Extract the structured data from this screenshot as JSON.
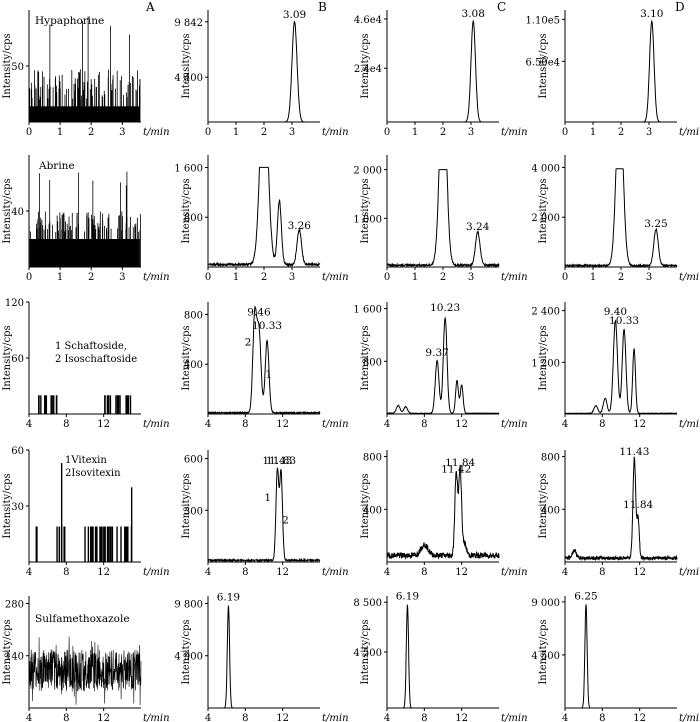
{
  "column_letters": [
    "A",
    "B",
    "C",
    "D"
  ],
  "chart_data": [
    {
      "id": "r0c0",
      "row": 0,
      "col": 0,
      "type": "line",
      "ylabel": "Intensity/cps",
      "xlabel": "t/min",
      "xlim": [
        0,
        3.6
      ],
      "ylim": [
        0,
        100
      ],
      "xticks": [
        0,
        1,
        2,
        3
      ],
      "yticks": [
        50
      ],
      "ytick_labels": [
        "50"
      ],
      "title": "Hypaphorine",
      "noise": {
        "kind": "spiky",
        "base": 14,
        "spike": [
          20,
          48
        ],
        "peaks": [
          75,
          95
        ]
      },
      "annotations": []
    },
    {
      "id": "r0c1",
      "row": 0,
      "col": 1,
      "type": "line",
      "ylabel": "Intensity/cps",
      "xlabel": "t/min",
      "xlim": [
        0,
        4
      ],
      "ylim": [
        0,
        11000
      ],
      "xticks": [
        0,
        1,
        2,
        3
      ],
      "yticks": [
        4400,
        9842
      ],
      "ytick_labels": [
        "4 400",
        "9 842"
      ],
      "peaks": [
        {
          "x": 3.09,
          "h": 9842,
          "w": 0.09
        }
      ],
      "annotations": [
        {
          "text": "3.09",
          "x": 3.09,
          "y": 9842
        }
      ]
    },
    {
      "id": "r0c2",
      "row": 0,
      "col": 2,
      "type": "line",
      "ylabel": "Intensity/cps",
      "xlabel": "t/min",
      "xlim": [
        0,
        4
      ],
      "ylim": [
        0,
        50000
      ],
      "xticks": [
        0,
        1,
        2,
        3
      ],
      "yticks": [
        24000,
        46000
      ],
      "ytick_labels": [
        "2.4e4",
        "4.6e4"
      ],
      "peaks": [
        {
          "x": 3.08,
          "h": 45000,
          "w": 0.08
        }
      ],
      "annotations": [
        {
          "text": "3.08",
          "x": 3.08,
          "y": 45000
        }
      ]
    },
    {
      "id": "r0c3",
      "row": 0,
      "col": 3,
      "type": "line",
      "ylabel": "Intensity/cps",
      "xlabel": "t/min",
      "xlim": [
        0,
        4
      ],
      "ylim": [
        0,
        120000
      ],
      "xticks": [
        0,
        1,
        2,
        3
      ],
      "yticks": [
        65000,
        110000
      ],
      "ytick_labels": [
        "6.50e4",
        "1.10e5"
      ],
      "peaks": [
        {
          "x": 3.1,
          "h": 108000,
          "w": 0.08
        }
      ],
      "annotations": [
        {
          "text": "3.10",
          "x": 3.1,
          "y": 108000
        }
      ]
    },
    {
      "id": "r1c0",
      "row": 1,
      "col": 0,
      "type": "line",
      "ylabel": "Intensity/cps",
      "xlabel": "t/min",
      "xlim": [
        0,
        3.6
      ],
      "ylim": [
        0,
        80
      ],
      "xticks": [
        0,
        1,
        2,
        3
      ],
      "yticks": [
        40
      ],
      "ytick_labels": [
        "40"
      ],
      "title": "Abrine",
      "noise": {
        "kind": "spiky",
        "base": 20,
        "spike": [
          25,
          40
        ],
        "peaks": [
          58,
          70
        ]
      },
      "annotations": []
    },
    {
      "id": "r1c1",
      "row": 1,
      "col": 1,
      "type": "line",
      "ylabel": "Intensity/cps",
      "xlabel": "t/min",
      "xlim": [
        0,
        4
      ],
      "ylim": [
        0,
        1800
      ],
      "xticks": [
        0,
        1,
        2,
        3
      ],
      "yticks": [
        800,
        1600
      ],
      "ytick_labels": [
        "800",
        "1 600"
      ],
      "clip": 1600,
      "baseline": 40,
      "peaks": [
        {
          "x": 2.0,
          "h": 3000,
          "w": 0.14
        },
        {
          "x": 2.55,
          "h": 1020,
          "w": 0.07
        },
        {
          "x": 3.26,
          "h": 550,
          "w": 0.08
        }
      ],
      "annotations": [
        {
          "text": "3.26",
          "x": 3.26,
          "y": 550
        }
      ]
    },
    {
      "id": "r1c2",
      "row": 1,
      "col": 2,
      "type": "line",
      "ylabel": "Intensity/cps",
      "xlabel": "t/min",
      "xlim": [
        0,
        4
      ],
      "ylim": [
        0,
        2300
      ],
      "xticks": [
        0,
        1,
        2,
        3
      ],
      "yticks": [
        1000,
        2000
      ],
      "ytick_labels": [
        "1 000",
        "2 000"
      ],
      "clip": 2000,
      "baseline": 40,
      "peaks": [
        {
          "x": 2.0,
          "h": 4000,
          "w": 0.12
        },
        {
          "x": 3.24,
          "h": 680,
          "w": 0.08
        }
      ],
      "annotations": [
        {
          "text": "3.24",
          "x": 3.24,
          "y": 680
        }
      ]
    },
    {
      "id": "r1c3",
      "row": 1,
      "col": 3,
      "type": "line",
      "ylabel": "Intensity/cps",
      "xlabel": "t/min",
      "xlim": [
        0,
        4
      ],
      "ylim": [
        0,
        4500
      ],
      "xticks": [
        0,
        1,
        2,
        3
      ],
      "yticks": [
        2000,
        4000
      ],
      "ytick_labels": [
        "2 000",
        "4 000"
      ],
      "clip": 3950,
      "baseline": 60,
      "peaks": [
        {
          "x": 1.95,
          "h": 7000,
          "w": 0.12
        },
        {
          "x": 3.25,
          "h": 1450,
          "w": 0.08
        }
      ],
      "annotations": [
        {
          "text": "3.25",
          "x": 3.25,
          "y": 1450
        }
      ]
    },
    {
      "id": "r2c0",
      "row": 2,
      "col": 0,
      "type": "line",
      "ylabel": "Intensity/cps",
      "xlabel": "t/min",
      "xlim": [
        4,
        16
      ],
      "ylim": [
        0,
        120
      ],
      "xticks": [
        4,
        8,
        12
      ],
      "yticks": [
        60,
        120
      ],
      "ytick_labels": [
        "60",
        "120"
      ],
      "title_lines": [
        "1 Schaftoside,",
        "2 Isoschaftoside"
      ],
      "noise": {
        "kind": "sparse",
        "ranges": [
          [
            5,
            7
          ],
          [
            12,
            15
          ]
        ],
        "h": 20
      },
      "annotations": []
    },
    {
      "id": "r2c1",
      "row": 2,
      "col": 1,
      "type": "line",
      "ylabel": "Intensity/cps",
      "xlabel": "t/min",
      "xlim": [
        4,
        16
      ],
      "ylim": [
        0,
        900
      ],
      "xticks": [
        4,
        8,
        12
      ],
      "yticks": [
        400,
        800
      ],
      "ytick_labels": [
        "400",
        "800"
      ],
      "baseline": 10,
      "peaks": [
        {
          "x": 9.0,
          "h": 760,
          "w": 0.2
        },
        {
          "x": 9.46,
          "h": 650,
          "w": 0.22
        },
        {
          "x": 10.33,
          "h": 580,
          "w": 0.2
        }
      ],
      "annotations": [
        {
          "text": "9.46",
          "x": 9.46,
          "y": 760
        },
        {
          "text": "10.33",
          "x": 10.33,
          "y": 650
        },
        {
          "text": "2",
          "x": 8.3,
          "y": 520
        },
        {
          "text": "1",
          "x": 10.5,
          "y": 260
        }
      ]
    },
    {
      "id": "r2c2",
      "row": 2,
      "col": 2,
      "type": "line",
      "ylabel": "Intensity/cps",
      "xlabel": "t/min",
      "xlim": [
        4,
        16
      ],
      "ylim": [
        0,
        1700
      ],
      "xticks": [
        4,
        8,
        12
      ],
      "yticks": [
        800,
        1600
      ],
      "ytick_labels": [
        "800",
        "1 600"
      ],
      "baseline": 10,
      "peaks": [
        {
          "x": 5.2,
          "h": 120,
          "w": 0.2
        },
        {
          "x": 6.0,
          "h": 100,
          "w": 0.2
        },
        {
          "x": 9.37,
          "h": 800,
          "w": 0.2
        },
        {
          "x": 10.23,
          "h": 1450,
          "w": 0.2
        },
        {
          "x": 11.5,
          "h": 500,
          "w": 0.15
        },
        {
          "x": 12.0,
          "h": 430,
          "w": 0.15
        }
      ],
      "annotations": [
        {
          "text": "9.37",
          "x": 9.37,
          "y": 820
        },
        {
          "text": "10.23",
          "x": 10.23,
          "y": 1500
        }
      ]
    },
    {
      "id": "r2c3",
      "row": 2,
      "col": 3,
      "type": "line",
      "ylabel": "Intensity/cps",
      "xlabel": "t/min",
      "xlim": [
        4,
        16
      ],
      "ylim": [
        0,
        2600
      ],
      "xticks": [
        4,
        8,
        12
      ],
      "yticks": [
        1200,
        2400
      ],
      "ytick_labels": [
        "1 200",
        "2 400"
      ],
      "baseline": 15,
      "peaks": [
        {
          "x": 7.3,
          "h": 180,
          "w": 0.2
        },
        {
          "x": 8.3,
          "h": 350,
          "w": 0.2
        },
        {
          "x": 9.4,
          "h": 2150,
          "w": 0.22
        },
        {
          "x": 10.33,
          "h": 1950,
          "w": 0.2
        },
        {
          "x": 11.4,
          "h": 1500,
          "w": 0.15
        }
      ],
      "annotations": [
        {
          "text": "9.40",
          "x": 9.4,
          "y": 2200
        },
        {
          "text": "10.33",
          "x": 10.33,
          "y": 2000
        }
      ]
    },
    {
      "id": "r3c0",
      "row": 3,
      "col": 0,
      "type": "line",
      "ylabel": "Intensity/cps",
      "xlabel": "t/min",
      "xlim": [
        4,
        16
      ],
      "ylim": [
        0,
        60
      ],
      "xticks": [
        4,
        8,
        12
      ],
      "yticks": [
        30,
        60
      ],
      "ytick_labels": [
        "30",
        "60"
      ],
      "title_lines": [
        "1Vitexin",
        "2Isovitexin"
      ],
      "noise": {
        "kind": "sparse",
        "ranges": [
          [
            4.5,
            5
          ],
          [
            7,
            8
          ],
          [
            10,
            15
          ]
        ],
        "h": 19,
        "peaks": [
          [
            7.5,
            53
          ],
          [
            15,
            40
          ]
        ]
      },
      "annotations": []
    },
    {
      "id": "r3c1",
      "row": 3,
      "col": 1,
      "type": "line",
      "ylabel": "Intensity/cps",
      "xlabel": "t/min",
      "xlim": [
        4,
        16
      ],
      "ylim": [
        0,
        650
      ],
      "xticks": [
        4,
        8,
        12
      ],
      "yticks": [
        300,
        600
      ],
      "ytick_labels": [
        "300",
        "600"
      ],
      "baseline": 10,
      "peaks": [
        {
          "x": 11.43,
          "h": 520,
          "w": 0.15
        },
        {
          "x": 11.83,
          "h": 510,
          "w": 0.15
        }
      ],
      "annotations": [
        {
          "text": "11.43",
          "x": 11.43,
          "y": 545
        },
        {
          "text": "11.83",
          "x": 11.83,
          "y": 545
        },
        {
          "text": "1",
          "x": 10.4,
          "y": 330
        },
        {
          "text": "2",
          "x": 12.3,
          "y": 200
        }
      ]
    },
    {
      "id": "r3c2",
      "row": 3,
      "col": 2,
      "type": "line",
      "ylabel": "Intensity/cps",
      "xlabel": "t/min",
      "xlim": [
        4,
        16
      ],
      "ylim": [
        0,
        850
      ],
      "xticks": [
        4,
        8,
        12
      ],
      "yticks": [
        400,
        800
      ],
      "ytick_labels": [
        "400",
        "800"
      ],
      "baseline": 50,
      "peaks": [
        {
          "x": 8.0,
          "h": 80,
          "w": 0.4
        },
        {
          "x": 11.42,
          "h": 630,
          "w": 0.15
        },
        {
          "x": 11.84,
          "h": 650,
          "w": 0.15
        },
        {
          "x": 12.3,
          "h": 90,
          "w": 0.2
        }
      ],
      "annotations": [
        {
          "text": "11.42",
          "x": 11.42,
          "y": 650
        },
        {
          "text": "11.84",
          "x": 11.84,
          "y": 700
        }
      ]
    },
    {
      "id": "r3c3",
      "row": 3,
      "col": 3,
      "type": "line",
      "ylabel": "Intensity/cps",
      "xlabel": "t/min",
      "xlim": [
        4,
        16
      ],
      "ylim": [
        0,
        850
      ],
      "xticks": [
        4,
        8,
        12
      ],
      "yticks": [
        400,
        800
      ],
      "ytick_labels": [
        "400",
        "800"
      ],
      "baseline": 30,
      "peaks": [
        {
          "x": 5.0,
          "h": 60,
          "w": 0.2
        },
        {
          "x": 11.43,
          "h": 760,
          "w": 0.15
        },
        {
          "x": 11.84,
          "h": 300,
          "w": 0.12
        }
      ],
      "annotations": [
        {
          "text": "11.43",
          "x": 11.43,
          "y": 780
        },
        {
          "text": "11.84",
          "x": 11.84,
          "y": 380
        }
      ]
    },
    {
      "id": "r4c0",
      "row": 4,
      "col": 0,
      "type": "line",
      "ylabel": "Intensity/cps",
      "xlabel": "t/min",
      "xlim": [
        4,
        16
      ],
      "ylim": [
        0,
        300
      ],
      "xticks": [
        4,
        8,
        12
      ],
      "yticks": [
        140,
        280
      ],
      "ytick_labels": [
        "140",
        "280"
      ],
      "title": "Sulfamethoxazole",
      "noise": {
        "kind": "dense",
        "mean": 100,
        "amp": 70
      },
      "annotations": []
    },
    {
      "id": "r4c1",
      "row": 4,
      "col": 1,
      "type": "line",
      "ylabel": "Intensity/cps",
      "xlabel": "t/min",
      "xlim": [
        4,
        16
      ],
      "ylim": [
        0,
        10500
      ],
      "xticks": [
        4,
        8,
        12
      ],
      "yticks": [
        4900,
        9800
      ],
      "ytick_labels": [
        "4 900",
        "9 800"
      ],
      "baseline": 0,
      "peaks": [
        {
          "x": 6.19,
          "h": 9600,
          "w": 0.12
        }
      ],
      "annotations": [
        {
          "text": "6.19",
          "x": 6.19,
          "y": 9700
        }
      ]
    },
    {
      "id": "r4c2",
      "row": 4,
      "col": 2,
      "type": "line",
      "ylabel": "Intensity/cps",
      "xlabel": "t/min",
      "xlim": [
        4,
        16
      ],
      "ylim": [
        0,
        9000
      ],
      "xticks": [
        4,
        8,
        12
      ],
      "yticks": [
        4500,
        8500
      ],
      "ytick_labels": [
        "4 500",
        "8 500"
      ],
      "baseline": 0,
      "peaks": [
        {
          "x": 6.19,
          "h": 8300,
          "w": 0.12
        }
      ],
      "annotations": [
        {
          "text": "6.19",
          "x": 6.19,
          "y": 8400
        }
      ]
    },
    {
      "id": "r4c3",
      "row": 4,
      "col": 3,
      "type": "line",
      "ylabel": "Intensity/cps",
      "xlabel": "t/min",
      "xlim": [
        4,
        16
      ],
      "ylim": [
        0,
        9500
      ],
      "xticks": [
        4,
        8,
        12
      ],
      "yticks": [
        4500,
        9000
      ],
      "ytick_labels": [
        "4 500",
        "9 000"
      ],
      "baseline": 0,
      "peaks": [
        {
          "x": 6.25,
          "h": 8800,
          "w": 0.12
        }
      ],
      "annotations": [
        {
          "text": "6.25",
          "x": 6.25,
          "y": 8850
        }
      ]
    }
  ]
}
